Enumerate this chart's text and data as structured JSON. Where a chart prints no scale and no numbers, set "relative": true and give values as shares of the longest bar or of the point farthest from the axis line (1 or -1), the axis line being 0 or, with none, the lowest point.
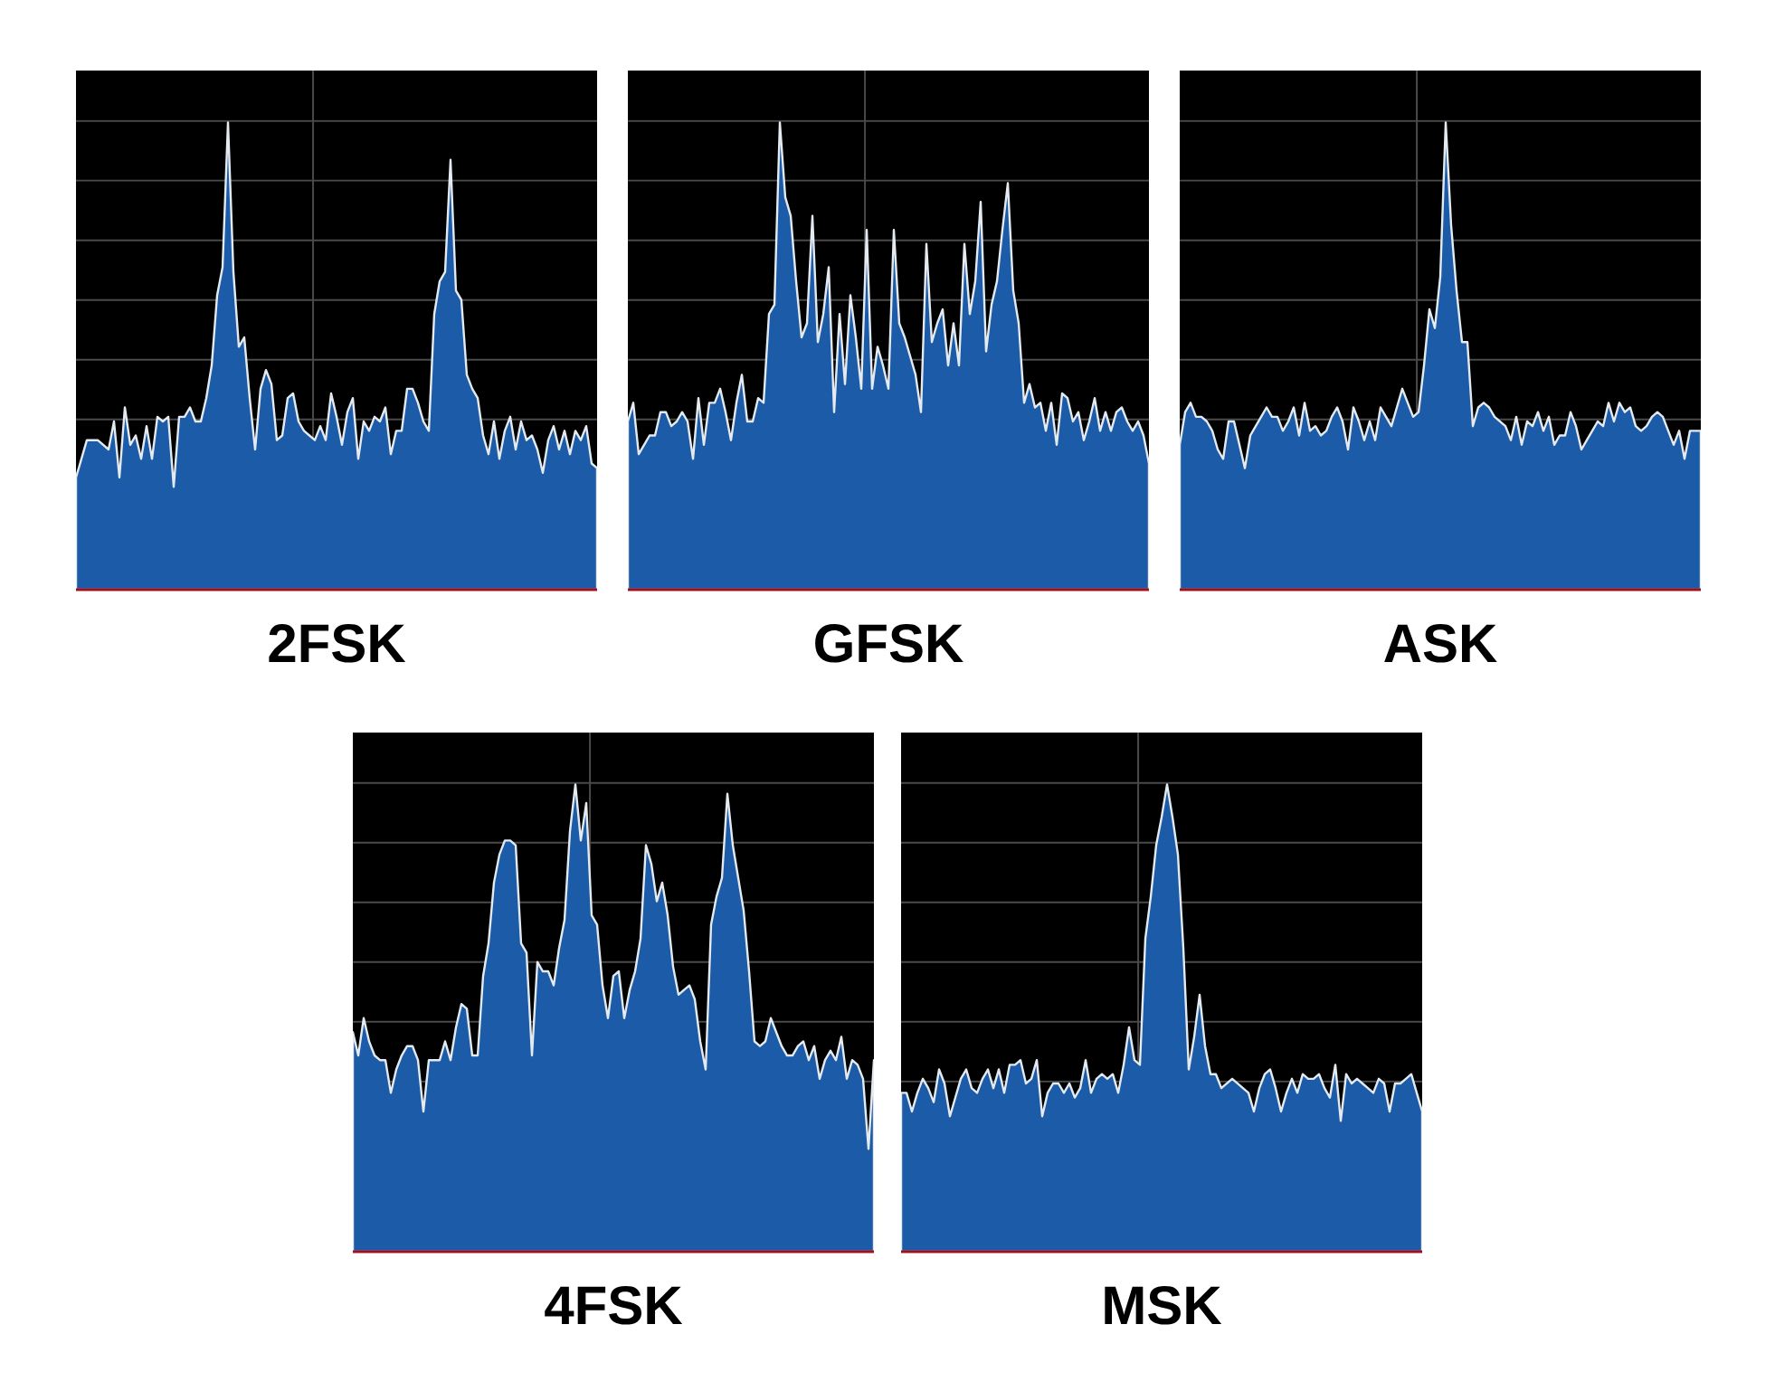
{
  "chart_data": [
    {
      "type": "area",
      "title": "2FSK",
      "relative": true,
      "grid": true,
      "color": "#1b5ba8",
      "categories": [
        null,
        null,
        null,
        null,
        null,
        null,
        null,
        null,
        null,
        null,
        null,
        null,
        null,
        null,
        null,
        null,
        null,
        null,
        null,
        null,
        null,
        null,
        null,
        null,
        null,
        null,
        null,
        null,
        null,
        null,
        null,
        null,
        null,
        null,
        null,
        null,
        null,
        null,
        null,
        null,
        null,
        null,
        null,
        null,
        null,
        null,
        null,
        null,
        null,
        null,
        null,
        null,
        null,
        null,
        null,
        null,
        null,
        null,
        null,
        null,
        null,
        null,
        null,
        null,
        null,
        null,
        null,
        null,
        null,
        null,
        null,
        null,
        null,
        null,
        null,
        null,
        null,
        null,
        null,
        null,
        null,
        null,
        null,
        null,
        null,
        null,
        null,
        null,
        null,
        null,
        null,
        null,
        null,
        null,
        null,
        null,
        null
      ],
      "values": [
        0.24,
        0.28,
        0.32,
        0.32,
        0.32,
        0.31,
        0.3,
        0.36,
        0.24,
        0.39,
        0.31,
        0.33,
        0.28,
        0.35,
        0.28,
        0.37,
        0.36,
        0.37,
        0.22,
        0.37,
        0.37,
        0.39,
        0.36,
        0.36,
        0.41,
        0.48,
        0.63,
        0.69,
        1,
        0.68,
        0.52,
        0.54,
        0.41,
        0.3,
        0.43,
        0.47,
        0.44,
        0.32,
        0.33,
        0.41,
        0.42,
        0.36,
        0.34,
        0.33,
        0.32,
        0.35,
        0.32,
        0.42,
        0.37,
        0.31,
        0.38,
        0.41,
        0.28,
        0.36,
        0.34,
        0.37,
        0.36,
        0.39,
        0.29,
        0.34,
        0.34,
        0.43,
        0.43,
        0.4,
        0.36,
        0.34,
        0.59,
        0.66,
        0.68,
        0.92,
        0.64,
        0.62,
        0.46,
        0.43,
        0.41,
        0.33,
        0.29,
        0.36,
        0.28,
        0.34,
        0.37,
        0.3,
        0.36,
        0.32,
        0.33,
        0.3,
        0.25,
        0.32,
        0.35,
        0.3,
        0.34,
        0.29,
        0.34,
        0.32,
        0.35,
        0.27,
        0.26
      ]
    },
    {
      "type": "area",
      "title": "GFSK",
      "relative": true,
      "grid": true,
      "color": "#1b5ba8",
      "categories": [
        null,
        null,
        null,
        null,
        null,
        null,
        null,
        null,
        null,
        null,
        null,
        null,
        null,
        null,
        null,
        null,
        null,
        null,
        null,
        null,
        null,
        null,
        null,
        null,
        null,
        null,
        null,
        null,
        null,
        null,
        null,
        null,
        null,
        null,
        null,
        null,
        null,
        null,
        null,
        null,
        null,
        null,
        null,
        null,
        null,
        null,
        null,
        null,
        null,
        null,
        null,
        null,
        null,
        null,
        null,
        null,
        null,
        null,
        null,
        null,
        null,
        null,
        null,
        null,
        null,
        null,
        null,
        null,
        null,
        null,
        null,
        null,
        null,
        null,
        null,
        null,
        null,
        null,
        null,
        null,
        null,
        null,
        null,
        null,
        null,
        null,
        null,
        null,
        null,
        null,
        null,
        null,
        null,
        null,
        null,
        null,
        null
      ],
      "values": [
        0.36,
        0.4,
        0.29,
        0.31,
        0.33,
        0.33,
        0.38,
        0.38,
        0.35,
        0.36,
        0.38,
        0.36,
        0.28,
        0.41,
        0.31,
        0.4,
        0.4,
        0.43,
        0.38,
        0.32,
        0.4,
        0.46,
        0.36,
        0.36,
        0.41,
        0.4,
        0.59,
        0.61,
        1,
        0.84,
        0.8,
        0.66,
        0.54,
        0.57,
        0.8,
        0.53,
        0.59,
        0.69,
        0.38,
        0.59,
        0.44,
        0.63,
        0.54,
        0.43,
        0.77,
        0.43,
        0.52,
        0.48,
        0.43,
        0.77,
        0.57,
        0.54,
        0.5,
        0.46,
        0.38,
        0.74,
        0.53,
        0.57,
        0.6,
        0.48,
        0.57,
        0.48,
        0.74,
        0.59,
        0.66,
        0.83,
        0.51,
        0.61,
        0.66,
        0.77,
        0.87,
        0.64,
        0.57,
        0.4,
        0.44,
        0.39,
        0.4,
        0.34,
        0.4,
        0.31,
        0.42,
        0.41,
        0.36,
        0.38,
        0.32,
        0.36,
        0.41,
        0.34,
        0.38,
        0.34,
        0.38,
        0.39,
        0.36,
        0.34,
        0.36,
        0.33,
        0.27
      ]
    },
    {
      "type": "area",
      "title": "ASK",
      "relative": true,
      "grid": true,
      "color": "#1b5ba8",
      "categories": [
        null,
        null,
        null,
        null,
        null,
        null,
        null,
        null,
        null,
        null,
        null,
        null,
        null,
        null,
        null,
        null,
        null,
        null,
        null,
        null,
        null,
        null,
        null,
        null,
        null,
        null,
        null,
        null,
        null,
        null,
        null,
        null,
        null,
        null,
        null,
        null,
        null,
        null,
        null,
        null,
        null,
        null,
        null,
        null,
        null,
        null,
        null,
        null,
        null,
        null,
        null,
        null,
        null,
        null,
        null,
        null,
        null,
        null,
        null,
        null,
        null,
        null,
        null,
        null,
        null,
        null,
        null,
        null,
        null,
        null,
        null,
        null,
        null,
        null,
        null,
        null,
        null,
        null,
        null,
        null,
        null,
        null,
        null,
        null,
        null,
        null,
        null,
        null,
        null,
        null,
        null,
        null,
        null,
        null,
        null,
        null,
        null
      ],
      "values": [
        0.31,
        0.38,
        0.4,
        0.37,
        0.37,
        0.36,
        0.34,
        0.3,
        0.28,
        0.36,
        0.36,
        0.31,
        0.26,
        0.33,
        0.35,
        0.37,
        0.39,
        0.37,
        0.37,
        0.34,
        0.36,
        0.39,
        0.33,
        0.4,
        0.34,
        0.35,
        0.33,
        0.34,
        0.37,
        0.39,
        0.36,
        0.3,
        0.39,
        0.36,
        0.32,
        0.36,
        0.32,
        0.39,
        0.37,
        0.35,
        0.39,
        0.43,
        0.4,
        0.37,
        0.38,
        0.48,
        0.6,
        0.56,
        0.67,
        1,
        0.78,
        0.64,
        0.53,
        0.53,
        0.35,
        0.39,
        0.4,
        0.39,
        0.37,
        0.36,
        0.35,
        0.32,
        0.37,
        0.31,
        0.36,
        0.35,
        0.38,
        0.34,
        0.37,
        0.31,
        0.33,
        0.33,
        0.38,
        0.35,
        0.3,
        0.32,
        0.34,
        0.36,
        0.35,
        0.4,
        0.36,
        0.4,
        0.38,
        0.39,
        0.35,
        0.34,
        0.35,
        0.37,
        0.38,
        0.37,
        0.34,
        0.31,
        0.34,
        0.28,
        0.34,
        0.34,
        0.34
      ]
    },
    {
      "type": "area",
      "title": "4FSK",
      "relative": true,
      "grid": true,
      "color": "#1b5ba8",
      "categories": [
        null,
        null,
        null,
        null,
        null,
        null,
        null,
        null,
        null,
        null,
        null,
        null,
        null,
        null,
        null,
        null,
        null,
        null,
        null,
        null,
        null,
        null,
        null,
        null,
        null,
        null,
        null,
        null,
        null,
        null,
        null,
        null,
        null,
        null,
        null,
        null,
        null,
        null,
        null,
        null,
        null,
        null,
        null,
        null,
        null,
        null,
        null,
        null,
        null,
        null,
        null,
        null,
        null,
        null,
        null,
        null,
        null,
        null,
        null,
        null,
        null,
        null,
        null,
        null,
        null,
        null,
        null,
        null,
        null,
        null,
        null,
        null,
        null,
        null,
        null,
        null,
        null,
        null,
        null,
        null,
        null,
        null,
        null,
        null,
        null,
        null,
        null,
        null,
        null,
        null,
        null,
        null,
        null,
        null,
        null,
        null,
        null
      ],
      "values": [
        0.47,
        0.42,
        0.5,
        0.45,
        0.42,
        0.41,
        0.41,
        0.34,
        0.39,
        0.42,
        0.44,
        0.44,
        0.41,
        0.3,
        0.41,
        0.41,
        0.41,
        0.45,
        0.41,
        0.48,
        0.53,
        0.52,
        0.42,
        0.42,
        0.59,
        0.66,
        0.79,
        0.85,
        0.88,
        0.88,
        0.87,
        0.66,
        0.64,
        0.42,
        0.62,
        0.6,
        0.6,
        0.57,
        0.65,
        0.71,
        0.9,
        1,
        0.88,
        0.96,
        0.72,
        0.7,
        0.57,
        0.5,
        0.59,
        0.6,
        0.5,
        0.56,
        0.6,
        0.67,
        0.87,
        0.83,
        0.75,
        0.79,
        0.72,
        0.61,
        0.55,
        0.56,
        0.57,
        0.54,
        0.45,
        0.39,
        0.7,
        0.76,
        0.8,
        0.98,
        0.87,
        0.8,
        0.73,
        0.6,
        0.45,
        0.44,
        0.45,
        0.5,
        0.47,
        0.44,
        0.42,
        0.42,
        0.44,
        0.45,
        0.41,
        0.44,
        0.37,
        0.41,
        0.43,
        0.41,
        0.46,
        0.37,
        0.41,
        0.4,
        0.37,
        0.22,
        0.41
      ]
    },
    {
      "type": "area",
      "title": "MSK",
      "relative": true,
      "grid": true,
      "color": "#1b5ba8",
      "categories": [
        null,
        null,
        null,
        null,
        null,
        null,
        null,
        null,
        null,
        null,
        null,
        null,
        null,
        null,
        null,
        null,
        null,
        null,
        null,
        null,
        null,
        null,
        null,
        null,
        null,
        null,
        null,
        null,
        null,
        null,
        null,
        null,
        null,
        null,
        null,
        null,
        null,
        null,
        null,
        null,
        null,
        null,
        null,
        null,
        null,
        null,
        null,
        null,
        null,
        null,
        null,
        null,
        null,
        null,
        null,
        null,
        null,
        null,
        null,
        null,
        null,
        null,
        null,
        null,
        null,
        null,
        null,
        null,
        null,
        null,
        null,
        null,
        null,
        null,
        null,
        null,
        null,
        null,
        null,
        null,
        null,
        null,
        null,
        null,
        null,
        null,
        null,
        null,
        null,
        null,
        null,
        null,
        null,
        null,
        null,
        null,
        null
      ],
      "values": [
        0.34,
        0.34,
        0.3,
        0.34,
        0.37,
        0.35,
        0.32,
        0.39,
        0.36,
        0.29,
        0.33,
        0.37,
        0.39,
        0.35,
        0.34,
        0.37,
        0.39,
        0.35,
        0.39,
        0.34,
        0.4,
        0.4,
        0.41,
        0.36,
        0.37,
        0.41,
        0.29,
        0.34,
        0.36,
        0.36,
        0.34,
        0.36,
        0.33,
        0.35,
        0.41,
        0.34,
        0.37,
        0.38,
        0.37,
        0.38,
        0.34,
        0.4,
        0.48,
        0.41,
        0.4,
        0.67,
        0.76,
        0.87,
        0.93,
        1,
        0.93,
        0.85,
        0.65,
        0.39,
        0.46,
        0.55,
        0.44,
        0.38,
        0.38,
        0.35,
        0.36,
        0.37,
        0.36,
        0.35,
        0.34,
        0.3,
        0.35,
        0.38,
        0.39,
        0.35,
        0.3,
        0.34,
        0.37,
        0.34,
        0.38,
        0.37,
        0.37,
        0.38,
        0.35,
        0.33,
        0.4,
        0.28,
        0.38,
        0.36,
        0.37,
        0.36,
        0.35,
        0.34,
        0.37,
        0.36,
        0.3,
        0.36,
        0.36,
        0.37,
        0.38,
        0.34,
        0.3
      ]
    }
  ]
}
